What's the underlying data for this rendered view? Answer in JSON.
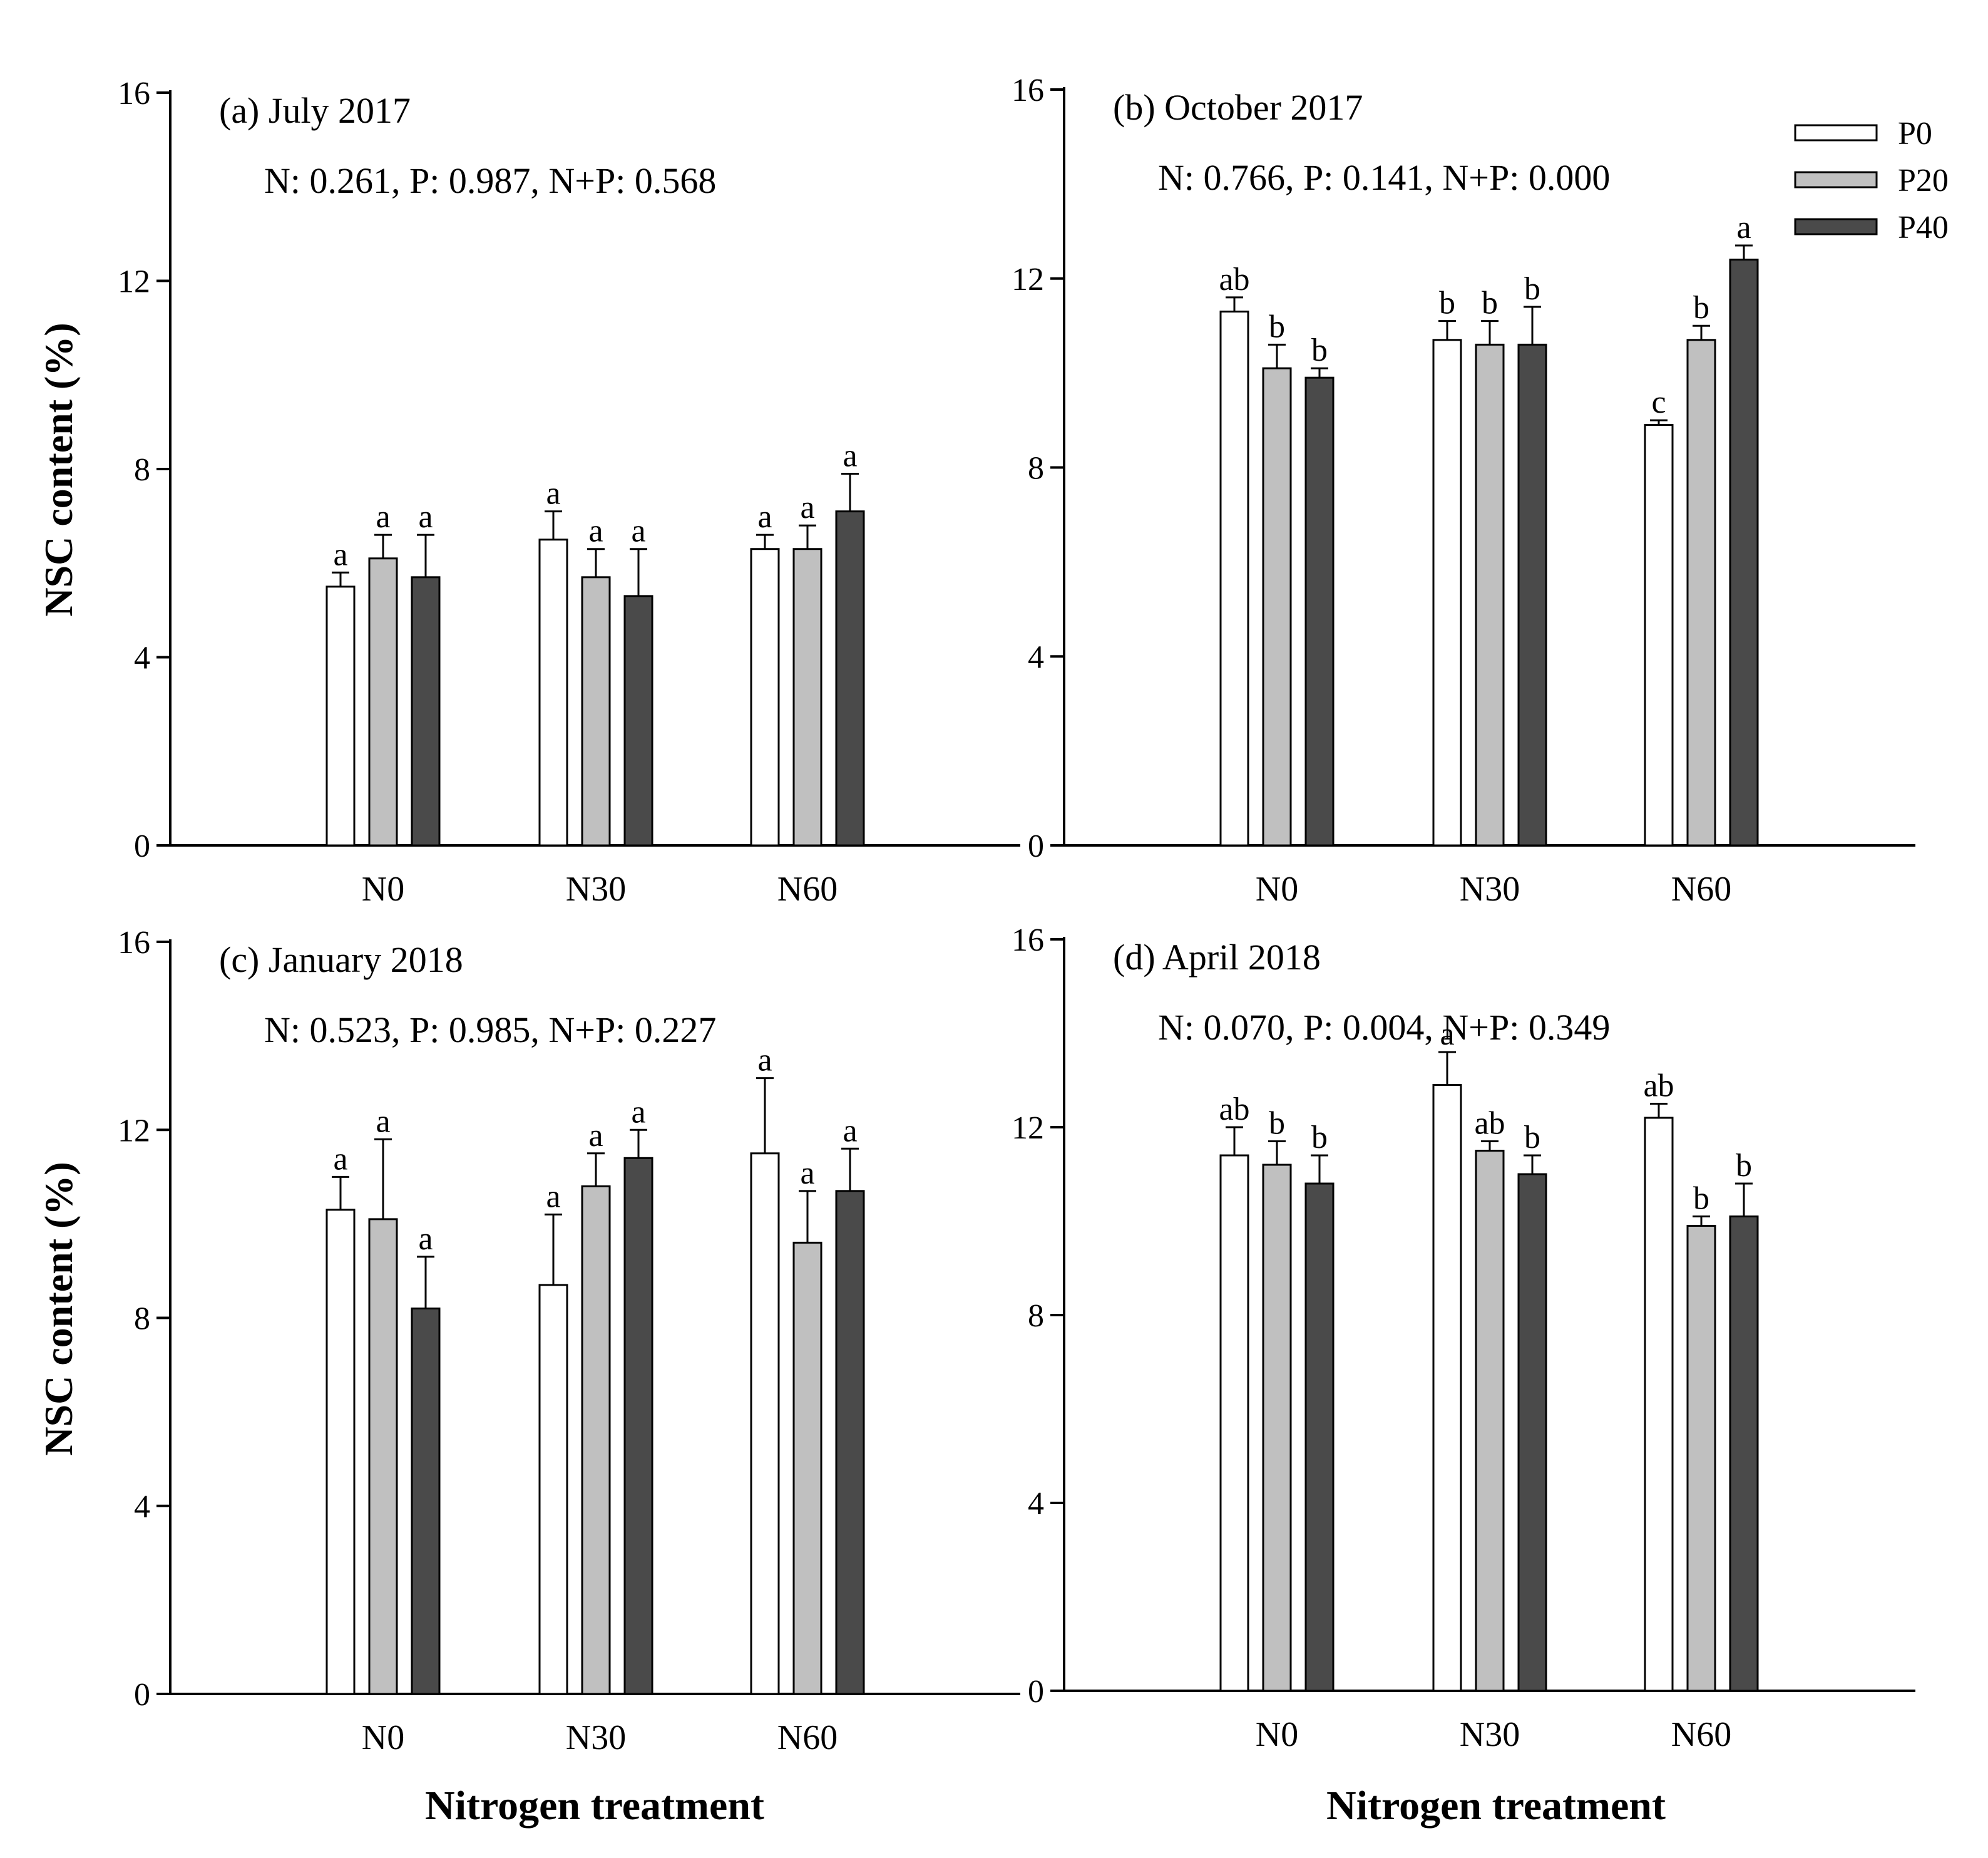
{
  "chart_data": {
    "type": "bar",
    "categories": [
      "N0",
      "N30",
      "N60"
    ],
    "series_names": [
      "P0",
      "P20",
      "P40"
    ],
    "colors": {
      "P0": "#ffffff",
      "P20": "#c0c0c0",
      "P40": "#4a4a4a"
    },
    "ylim": [
      0,
      16
    ],
    "yticks": [
      0,
      4,
      8,
      12,
      16
    ],
    "ylabel": "NSC content (%)",
    "xlabel": "Nitrogen treatment",
    "legend": {
      "position": "top-right",
      "entries": [
        "P0",
        "P20",
        "P40"
      ]
    },
    "panels": [
      {
        "title": "(a) July 2017",
        "stats": "N: 0.261, P: 0.987, N+P: 0.568",
        "values": [
          [
            5.5,
            6.1,
            5.7
          ],
          [
            6.5,
            5.7,
            5.3
          ],
          [
            6.3,
            6.3,
            7.1
          ]
        ],
        "errors": [
          [
            0.3,
            0.5,
            0.9
          ],
          [
            0.6,
            0.6,
            1.0
          ],
          [
            0.3,
            0.5,
            0.8
          ]
        ],
        "letters": [
          [
            "a",
            "a",
            "a"
          ],
          [
            "a",
            "a",
            "a"
          ],
          [
            "a",
            "a",
            "a"
          ]
        ]
      },
      {
        "title": "(b) October 2017",
        "stats": "N: 0.766, P: 0.141, N+P: 0.000",
        "values": [
          [
            11.3,
            10.1,
            9.9
          ],
          [
            10.7,
            10.6,
            10.6
          ],
          [
            8.9,
            10.7,
            12.4
          ]
        ],
        "errors": [
          [
            0.3,
            0.5,
            0.2
          ],
          [
            0.4,
            0.5,
            0.8
          ],
          [
            0.1,
            0.3,
            0.3
          ]
        ],
        "letters": [
          [
            "ab",
            "b",
            "b"
          ],
          [
            "b",
            "b",
            "b"
          ],
          [
            "c",
            "b",
            "a"
          ]
        ]
      },
      {
        "title": "(c) January 2018",
        "stats": "N: 0.523, P: 0.985, N+P: 0.227",
        "values": [
          [
            10.3,
            10.1,
            8.2
          ],
          [
            8.7,
            10.8,
            11.4
          ],
          [
            11.5,
            9.6,
            10.7
          ]
        ],
        "errors": [
          [
            0.7,
            1.7,
            1.1
          ],
          [
            1.5,
            0.7,
            0.6
          ],
          [
            1.6,
            1.1,
            0.9
          ]
        ],
        "letters": [
          [
            "a",
            "a",
            "a"
          ],
          [
            "a",
            "a",
            "a"
          ],
          [
            "a",
            "a",
            "a"
          ]
        ]
      },
      {
        "title": "(d) April 2018",
        "stats": "N: 0.070, P: 0.004, N+P: 0.349",
        "values": [
          [
            11.4,
            11.2,
            10.8
          ],
          [
            12.9,
            11.5,
            11.0
          ],
          [
            12.2,
            9.9,
            10.1
          ]
        ],
        "errors": [
          [
            0.6,
            0.5,
            0.6
          ],
          [
            0.7,
            0.2,
            0.4
          ],
          [
            0.3,
            0.2,
            0.7
          ]
        ],
        "letters": [
          [
            "ab",
            "b",
            "b"
          ],
          [
            "a",
            "ab",
            "b"
          ],
          [
            "ab",
            "b",
            "b"
          ]
        ]
      }
    ]
  }
}
